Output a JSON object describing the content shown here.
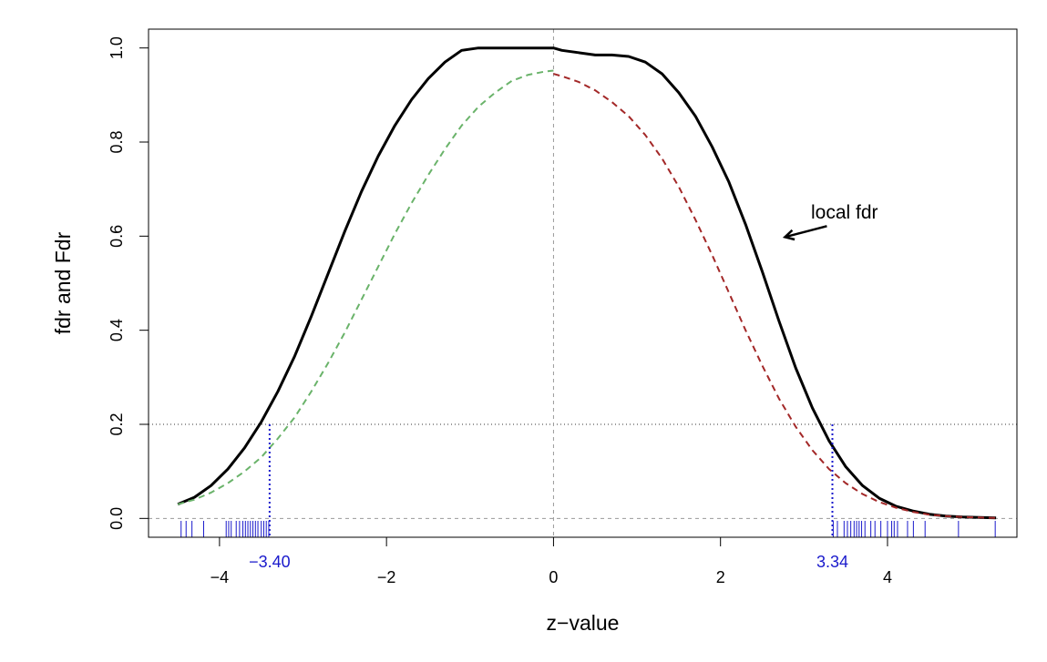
{
  "chart_data": {
    "type": "line",
    "title": "",
    "xlabel": "z−value",
    "ylabel": "fdr and Fdr",
    "xlim": [
      -4.85,
      5.55
    ],
    "ylim": [
      -0.04,
      1.04
    ],
    "x_ticks": [
      -4,
      -2,
      0,
      2,
      4
    ],
    "x_tick_labels": [
      "−4",
      "−2",
      "0",
      "2",
      "4"
    ],
    "y_ticks": [
      0.0,
      0.2,
      0.4,
      0.6,
      0.8,
      1.0
    ],
    "y_tick_labels": [
      "0.0",
      "0.2",
      "0.4",
      "0.6",
      "0.8",
      "1.0"
    ],
    "grid": false,
    "colors": {
      "local_fdr": "#000000",
      "left_Fdr": "#6ab36a",
      "right_Fdr": "#a32828",
      "threshold": "#1a1acc",
      "rug": "#1a1acc",
      "reference": "#999999"
    },
    "series": [
      {
        "style": "solid",
        "x": [
          -4.5,
          -4.3,
          -4.1,
          -3.9,
          -3.7,
          -3.5,
          -3.3,
          -3.1,
          -2.9,
          -2.7,
          -2.5,
          -2.3,
          -2.1,
          -1.9,
          -1.7,
          -1.5,
          -1.3,
          -1.1,
          -0.9,
          -0.7,
          -0.5,
          -0.3,
          -0.1,
          0.0,
          0.1,
          0.3,
          0.5,
          0.7,
          0.9,
          1.1,
          1.3,
          1.5,
          1.7,
          1.9,
          2.1,
          2.3,
          2.5,
          2.7,
          2.9,
          3.1,
          3.3,
          3.5,
          3.7,
          3.9,
          4.1,
          4.3,
          4.5,
          4.7,
          4.9,
          5.1,
          5.3
        ],
        "y": [
          0.03,
          0.045,
          0.07,
          0.105,
          0.15,
          0.205,
          0.27,
          0.345,
          0.43,
          0.52,
          0.61,
          0.695,
          0.77,
          0.835,
          0.89,
          0.935,
          0.97,
          0.995,
          1.0,
          1.0,
          1.0,
          1.0,
          1.0,
          1.0,
          0.995,
          0.99,
          0.985,
          0.985,
          0.982,
          0.97,
          0.945,
          0.905,
          0.855,
          0.79,
          0.715,
          0.625,
          0.525,
          0.42,
          0.32,
          0.235,
          0.165,
          0.11,
          0.07,
          0.043,
          0.026,
          0.016,
          0.009,
          0.005,
          0.003,
          0.002,
          0.001
        ]
      },
      {
        "style": "dashed",
        "x": [
          -4.5,
          -4.3,
          -4.1,
          -3.9,
          -3.7,
          -3.5,
          -3.3,
          -3.1,
          -2.9,
          -2.7,
          -2.5,
          -2.3,
          -2.1,
          -1.9,
          -1.7,
          -1.5,
          -1.3,
          -1.1,
          -0.9,
          -0.7,
          -0.5,
          -0.3,
          -0.1,
          0.0
        ],
        "y": [
          0.03,
          0.04,
          0.055,
          0.075,
          0.1,
          0.13,
          0.17,
          0.215,
          0.27,
          0.33,
          0.395,
          0.465,
          0.535,
          0.605,
          0.67,
          0.73,
          0.785,
          0.835,
          0.875,
          0.905,
          0.93,
          0.943,
          0.95,
          0.952
        ]
      },
      {
        "style": "dashed",
        "x": [
          0.0,
          0.1,
          0.3,
          0.5,
          0.7,
          0.9,
          1.1,
          1.3,
          1.5,
          1.7,
          1.9,
          2.1,
          2.3,
          2.5,
          2.7,
          2.9,
          3.1,
          3.3,
          3.5,
          3.7,
          3.9,
          4.1,
          4.3,
          4.5,
          4.7,
          4.9,
          5.1,
          5.3
        ],
        "y": [
          0.945,
          0.94,
          0.928,
          0.91,
          0.885,
          0.855,
          0.815,
          0.765,
          0.705,
          0.635,
          0.56,
          0.48,
          0.4,
          0.325,
          0.255,
          0.195,
          0.145,
          0.105,
          0.075,
          0.052,
          0.035,
          0.023,
          0.014,
          0.008,
          0.005,
          0.003,
          0.002,
          0.001
        ]
      }
    ],
    "reference_lines": {
      "horizontal_dotted_y": 0.2,
      "horizontal_dashed_y": 0.0,
      "vertical_dashed_x": 0.0
    },
    "thresholds": [
      {
        "x": -3.4,
        "y": 0.2,
        "label": "−3.40"
      },
      {
        "x": 3.34,
        "y": 0.2,
        "label": "3.34"
      }
    ],
    "rug_x": [
      -4.46,
      -4.4,
      -4.33,
      -4.19,
      -3.92,
      -3.89,
      -3.86,
      -3.8,
      -3.76,
      -3.72,
      -3.69,
      -3.66,
      -3.63,
      -3.6,
      -3.57,
      -3.54,
      -3.5,
      -3.47,
      -3.44,
      -3.41,
      3.35,
      3.4,
      3.48,
      3.52,
      3.56,
      3.6,
      3.63,
      3.66,
      3.69,
      3.73,
      3.8,
      3.85,
      3.92,
      4.0,
      4.05,
      4.08,
      4.12,
      4.24,
      4.31,
      4.45,
      4.85,
      5.29
    ],
    "annotation": {
      "text": "local fdr",
      "target_x": 2.75,
      "target_y": 0.6
    }
  }
}
